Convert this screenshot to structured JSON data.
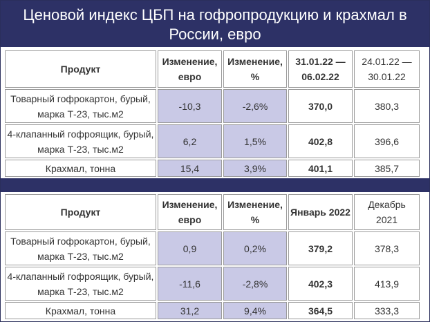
{
  "title": "Ценовой индекс ЦБП на гофропродукцию и крахмал в России, евро",
  "colors": {
    "header_bg": "#2d3166",
    "highlight_cell": "#c9c9e6",
    "border": "#9a9a9a"
  },
  "table_weekly": {
    "headers": {
      "product": "Продукт",
      "change_eur": "Изменение, евро",
      "change_pct": "Изменение, %",
      "current": "31.01.22 — 06.02.22",
      "previous": "24.01.22 — 30.01.22"
    },
    "rows": [
      {
        "product": "Товарный гофрокартон, бурый, марка Т-23, тыс.м2",
        "change_eur": "-10,3",
        "change_pct": "-2,6%",
        "current": "370,0",
        "previous": "380,3"
      },
      {
        "product": "4-клапанный гофроящик, бурый, марка Т-23, тыс.м2",
        "change_eur": "6,2",
        "change_pct": "1,5%",
        "current": "402,8",
        "previous": "396,6"
      },
      {
        "product": "Крахмал, тонна",
        "change_eur": "15,4",
        "change_pct": "3,9%",
        "current": "401,1",
        "previous": "385,7"
      }
    ]
  },
  "table_monthly": {
    "headers": {
      "product": "Продукт",
      "change_eur": "Изменение, евро",
      "change_pct": "Изменение, %",
      "current": "Январь 2022",
      "previous": "Декабрь 2021"
    },
    "rows": [
      {
        "product": "Товарный гофрокартон, бурый, марка Т-23, тыс.м2",
        "change_eur": "0,9",
        "change_pct": "0,2%",
        "current": "379,2",
        "previous": "378,3"
      },
      {
        "product": "4-клапанный гофроящик, бурый, марка Т-23, тыс.м2",
        "change_eur": "-11,6",
        "change_pct": "-2,8%",
        "current": "402,3",
        "previous": "413,9"
      },
      {
        "product": "Крахмал, тонна",
        "change_eur": "31,2",
        "change_pct": "9,4%",
        "current": "364,5",
        "previous": "333,3"
      }
    ]
  }
}
